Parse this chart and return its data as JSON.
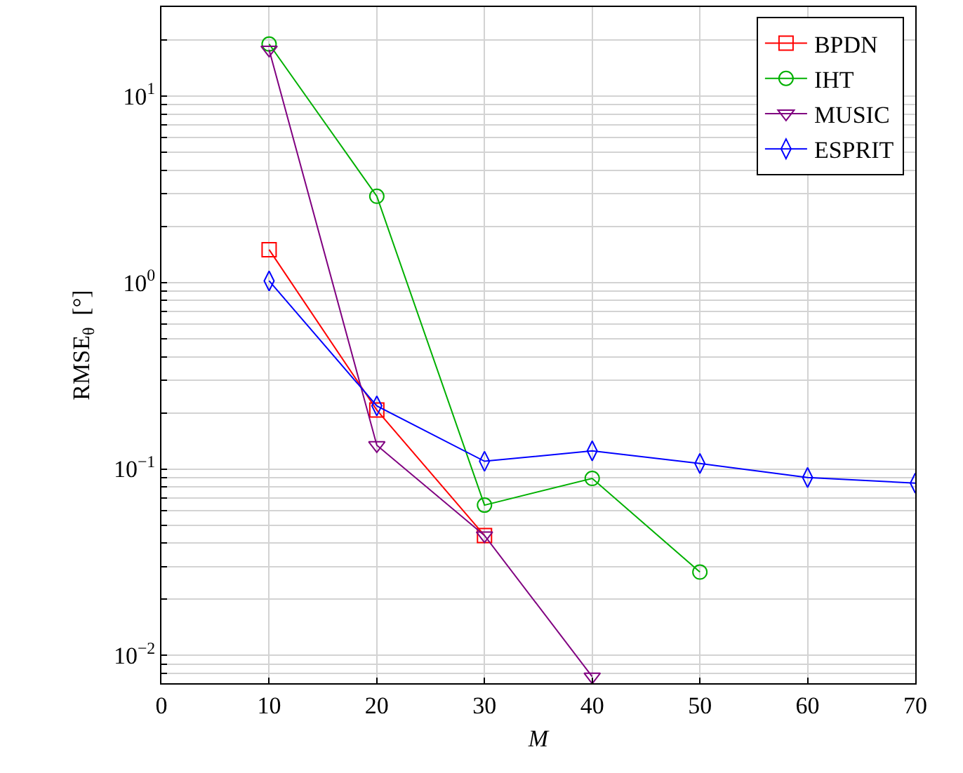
{
  "chart_data": {
    "type": "line",
    "xlabel": "M",
    "ylabel": "RMSE$_{θ}$  [°]",
    "xlim": [
      0,
      70
    ],
    "xticks": [
      0,
      10,
      20,
      30,
      40,
      50,
      60,
      70
    ],
    "ylim": [
      0.0071,
      30
    ],
    "log": "y",
    "yticks": [
      {
        "value": 0.008,
        "label": null
      },
      {
        "value": 0.009,
        "label": null
      },
      {
        "value": 0.01,
        "label": "10$^{−2}$"
      },
      {
        "value": 0.02,
        "label": null
      },
      {
        "value": 0.03,
        "label": null
      },
      {
        "value": 0.04,
        "label": null
      },
      {
        "value": 0.05,
        "label": null
      },
      {
        "value": 0.06,
        "label": null
      },
      {
        "value": 0.07,
        "label": null
      },
      {
        "value": 0.08,
        "label": null
      },
      {
        "value": 0.09,
        "label": null
      },
      {
        "value": 0.1,
        "label": "10$^{−1}$"
      },
      {
        "value": 0.2,
        "label": null
      },
      {
        "value": 0.3,
        "label": null
      },
      {
        "value": 0.4,
        "label": null
      },
      {
        "value": 0.5,
        "label": null
      },
      {
        "value": 0.6,
        "label": null
      },
      {
        "value": 0.7,
        "label": null
      },
      {
        "value": 0.8,
        "label": null
      },
      {
        "value": 0.9,
        "label": null
      },
      {
        "value": 1,
        "label": "10$^{0}$"
      },
      {
        "value": 2,
        "label": null
      },
      {
        "value": 3,
        "label": null
      },
      {
        "value": 4,
        "label": null
      },
      {
        "value": 5,
        "label": null
      },
      {
        "value": 6,
        "label": null
      },
      {
        "value": 7,
        "label": null
      },
      {
        "value": 8,
        "label": null
      },
      {
        "value": 9,
        "label": null
      },
      {
        "value": 10,
        "label": "10$^{1}$"
      },
      {
        "value": 20,
        "label": null
      },
      {
        "value": 30,
        "label": null
      }
    ],
    "grid": true,
    "legend": "top right",
    "line_style": "solid",
    "series": [
      {
        "name": "BPDN",
        "color": "#ff0000",
        "marker": "square",
        "x": [
          10,
          20,
          30
        ],
        "values": [
          1.5,
          0.207,
          0.044
        ]
      },
      {
        "name": "IHT",
        "color": "#00b000",
        "marker": "circle",
        "x": [
          10,
          20,
          30,
          40,
          50
        ],
        "values": [
          19,
          2.9,
          0.064,
          0.089,
          0.028
        ]
      },
      {
        "name": "MUSIC",
        "color": "#800080",
        "marker": "triangle",
        "x": [
          10,
          20,
          30,
          40
        ],
        "values": [
          17.7,
          0.134,
          0.044,
          0.0077
        ]
      },
      {
        "name": "ESPRIT",
        "color": "#0000ff",
        "marker": "diamond",
        "x": [
          10,
          20,
          30,
          40,
          50,
          60,
          70
        ],
        "values": [
          1.02,
          0.218,
          0.11,
          0.125,
          0.107,
          0.09,
          0.084
        ]
      }
    ]
  }
}
